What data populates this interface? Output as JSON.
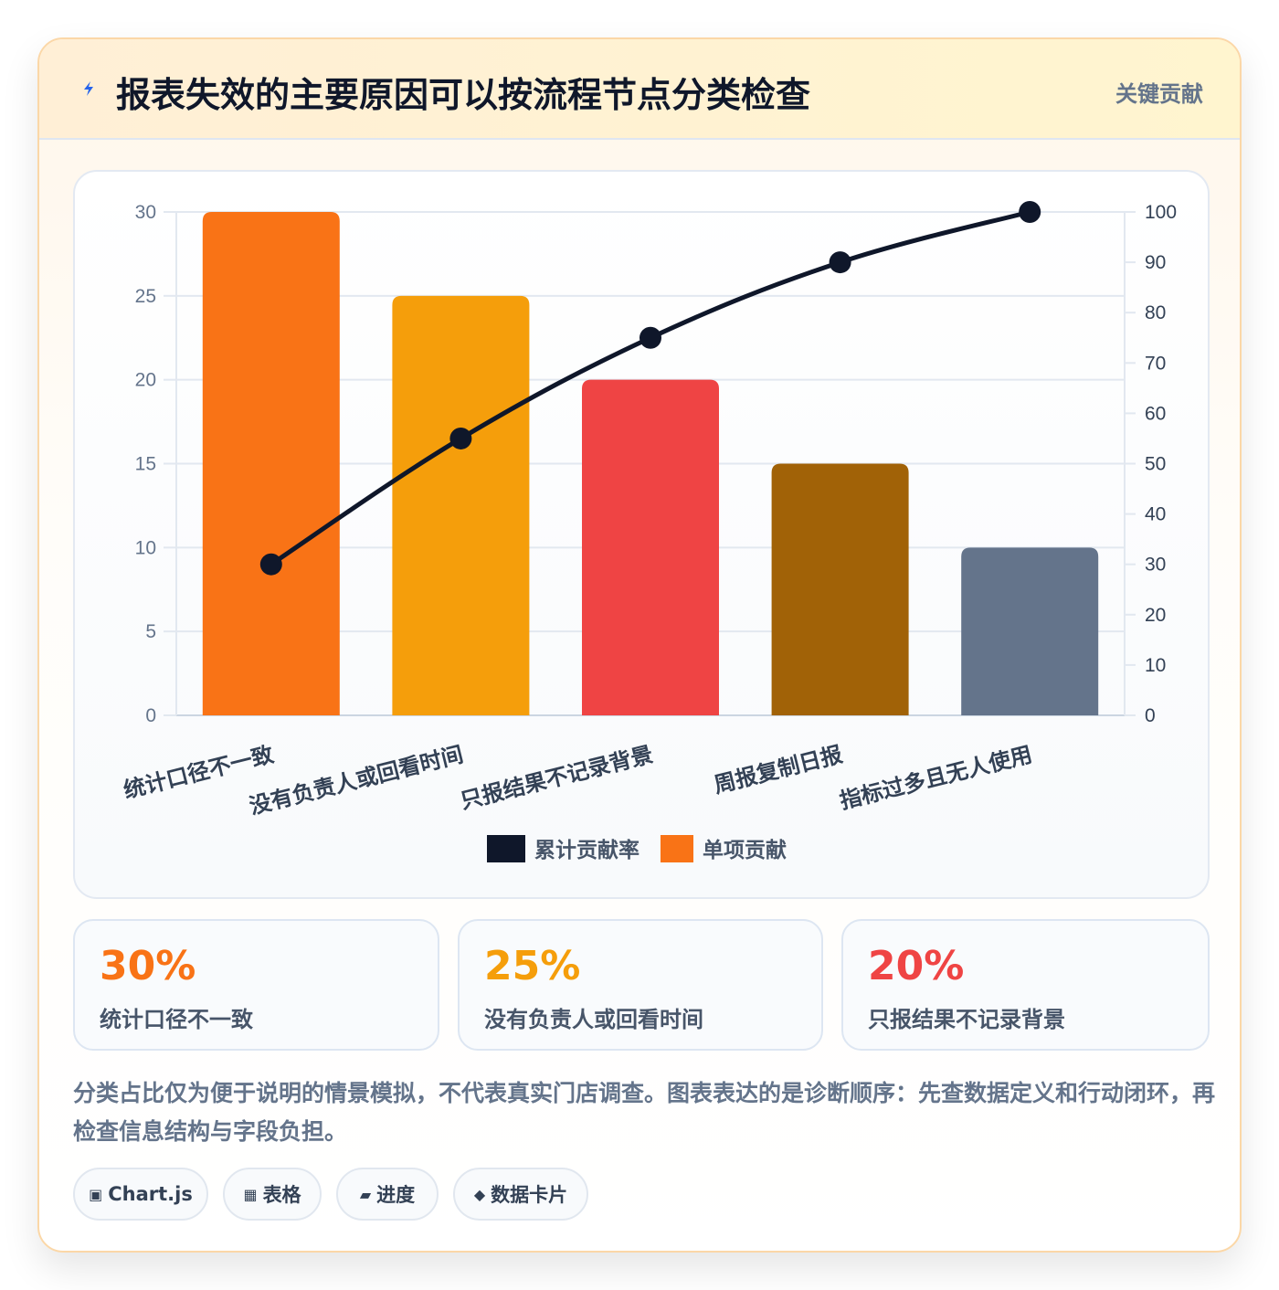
{
  "header": {
    "title": "报表失效的主要原因可以按流程节点分类检查",
    "badge": "关键贡献",
    "icon": "lightning-icon"
  },
  "chart_data": {
    "type": "bar",
    "categories": [
      "统计口径不一致",
      "没有负责人或回看时间",
      "只报结果不记录背景",
      "周报复制日报",
      "指标过多且无人使用"
    ],
    "series": [
      {
        "name": "单项贡献",
        "type": "bar",
        "axis": "left",
        "values": [
          30,
          25,
          20,
          15,
          10
        ],
        "colors": [
          "#f97316",
          "#f59e0b",
          "#ef4444",
          "#a16207",
          "#64748b"
        ]
      },
      {
        "name": "累计贡献率",
        "type": "line",
        "axis": "right",
        "values": [
          30,
          55,
          75,
          90,
          100
        ],
        "color": "#0f172a"
      }
    ],
    "ylim": [
      0,
      30
    ],
    "yticks": [
      0,
      5,
      10,
      15,
      20,
      25,
      30
    ],
    "y2lim": [
      0,
      100
    ],
    "y2ticks": [
      0,
      10,
      20,
      30,
      40,
      50,
      60,
      70,
      80,
      90,
      100
    ],
    "legend": [
      {
        "label": "累计贡献率",
        "color": "#0f172a"
      },
      {
        "label": "单项贡献",
        "color": "#f97316"
      }
    ],
    "legend_position": "bottom",
    "grid": true
  },
  "stats": [
    {
      "value": "30%",
      "label": "统计口径不一致",
      "color": "#f97316"
    },
    {
      "value": "25%",
      "label": "没有负责人或回看时间",
      "color": "#f59e0b"
    },
    {
      "value": "20%",
      "label": "只报结果不记录背景",
      "color": "#ef4444"
    }
  ],
  "note": "分类占比仅为便于说明的情景模拟，不代表真实门店调查。图表表达的是诊断顺序：先查数据定义和行动闭环，再检查信息结构与字段负担。",
  "chips": [
    {
      "icon": "▣",
      "icon_name": "chart-icon",
      "label": "Chart.js"
    },
    {
      "icon": "▦",
      "icon_name": "table-icon",
      "label": "表格"
    },
    {
      "icon": "▰",
      "icon_name": "progress-icon",
      "label": "进度"
    },
    {
      "icon": "◆",
      "icon_name": "diamond-icon",
      "label": "数据卡片"
    }
  ]
}
